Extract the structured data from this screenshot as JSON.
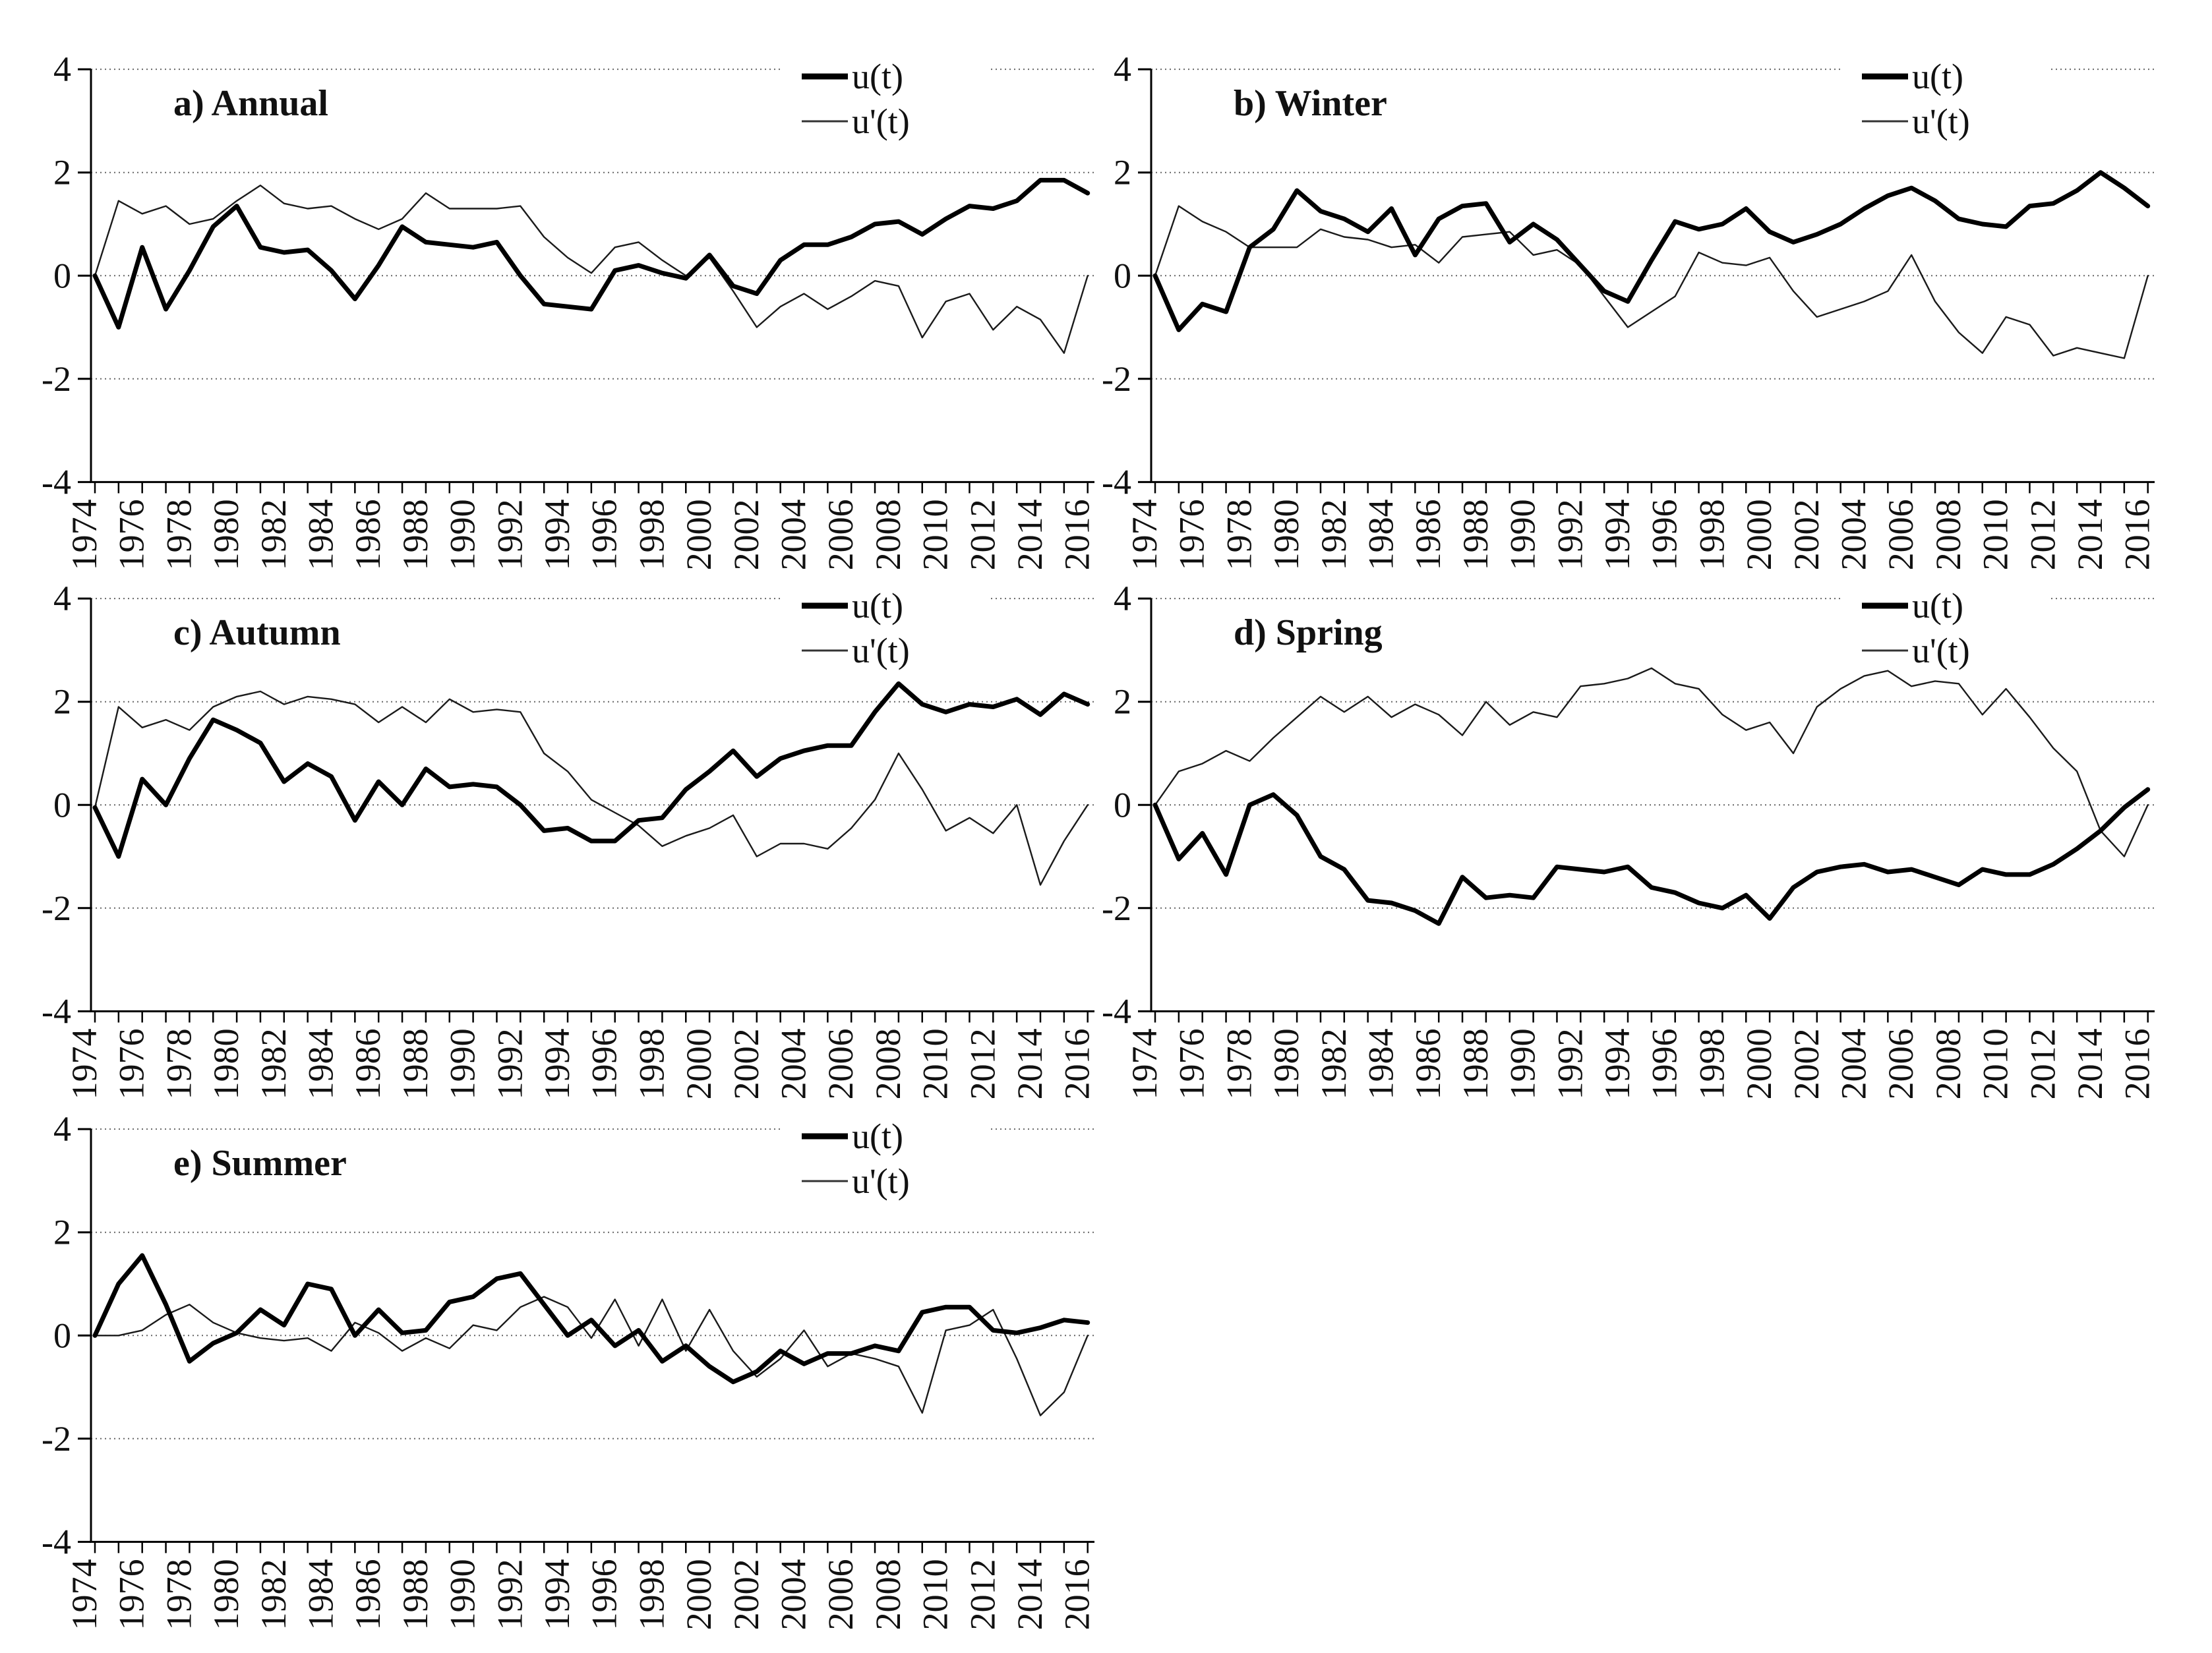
{
  "figure": {
    "background_color": "#ffffff",
    "axis_color": "#000000",
    "gridline_color": "#666666",
    "thick_series_color": "#000000",
    "thin_series_color": "#1a1a1a",
    "y_axis_ticks": [
      "4",
      "2",
      "0",
      "-2",
      "-4"
    ],
    "x_label_years": [
      1974,
      1976,
      1978,
      1980,
      1982,
      1984,
      1986,
      1988,
      1990,
      1992,
      1994,
      1996,
      1998,
      2000,
      2002,
      2004,
      2006,
      2008,
      2010,
      2012,
      2014,
      2016
    ]
  },
  "years": [
    1974,
    1975,
    1976,
    1977,
    1978,
    1979,
    1980,
    1981,
    1982,
    1983,
    1984,
    1985,
    1986,
    1987,
    1988,
    1989,
    1990,
    1991,
    1992,
    1993,
    1994,
    1995,
    1996,
    1997,
    1998,
    1999,
    2000,
    2001,
    2002,
    2003,
    2004,
    2005,
    2006,
    2007,
    2008,
    2009,
    2010,
    2011,
    2012,
    2013,
    2014,
    2015,
    2016
  ],
  "chart_data": [
    {
      "type": "line",
      "id": "annual",
      "title": "a) Annual",
      "xlabel": "",
      "ylabel": "",
      "ylim": [
        -4,
        4
      ],
      "grid": true,
      "legend_position": "top-right",
      "x_range": [
        1974,
        2016
      ],
      "series": [
        {
          "name": "u(t)",
          "style": "thick",
          "values": [
            0,
            -1.0,
            0.55,
            -0.65,
            0.1,
            0.95,
            1.35,
            0.55,
            0.45,
            0.5,
            0.1,
            -0.45,
            0.2,
            0.95,
            0.65,
            0.6,
            0.55,
            0.65,
            0.0,
            -0.55,
            -0.6,
            -0.65,
            0.1,
            0.2,
            0.05,
            -0.05,
            0.4,
            -0.2,
            -0.35,
            0.3,
            0.6,
            0.6,
            0.75,
            1.0,
            1.05,
            0.8,
            1.1,
            1.35,
            1.3,
            1.45,
            1.85,
            1.85,
            1.6
          ]
        },
        {
          "name": "u'(t)",
          "style": "thin",
          "values": [
            0,
            1.45,
            1.2,
            1.35,
            1.0,
            1.1,
            1.45,
            1.75,
            1.4,
            1.3,
            1.35,
            1.1,
            0.9,
            1.1,
            1.6,
            1.3,
            1.3,
            1.3,
            1.35,
            0.75,
            0.35,
            0.05,
            0.55,
            0.65,
            0.3,
            0.0,
            0.35,
            -0.3,
            -1.0,
            -0.6,
            -0.35,
            -0.65,
            -0.4,
            -0.1,
            -0.2,
            -1.2,
            -0.5,
            -0.35,
            -1.05,
            -0.6,
            -0.85,
            -1.5,
            0.0
          ]
        }
      ]
    },
    {
      "type": "line",
      "id": "winter",
      "title": "b) Winter",
      "xlabel": "",
      "ylabel": "",
      "ylim": [
        -4,
        4
      ],
      "grid": true,
      "legend_position": "top-right",
      "x_range": [
        1974,
        2016
      ],
      "series": [
        {
          "name": "u(t)",
          "style": "thick",
          "values": [
            0,
            -1.05,
            -0.55,
            -0.7,
            0.55,
            0.9,
            1.65,
            1.25,
            1.1,
            0.85,
            1.3,
            0.4,
            1.1,
            1.35,
            1.4,
            0.65,
            1.0,
            0.7,
            0.2,
            -0.3,
            -0.5,
            0.3,
            1.05,
            0.9,
            1.0,
            1.3,
            0.85,
            0.65,
            0.8,
            1.0,
            1.3,
            1.55,
            1.7,
            1.45,
            1.1,
            1.0,
            0.95,
            1.35,
            1.4,
            1.65,
            2.0,
            1.7,
            1.35
          ]
        },
        {
          "name": "u'(t)",
          "style": "thin",
          "values": [
            0,
            1.35,
            1.05,
            0.85,
            0.55,
            0.55,
            0.55,
            0.9,
            0.75,
            0.7,
            0.55,
            0.6,
            0.25,
            0.75,
            0.8,
            0.85,
            0.4,
            0.5,
            0.2,
            -0.4,
            -1.0,
            -0.7,
            -0.4,
            0.45,
            0.25,
            0.2,
            0.35,
            -0.3,
            -0.8,
            -0.65,
            -0.5,
            -0.3,
            0.4,
            -0.5,
            -1.1,
            -1.5,
            -0.8,
            -0.95,
            -1.55,
            -1.4,
            -1.5,
            -1.6,
            0.0
          ]
        }
      ]
    },
    {
      "type": "line",
      "id": "autumn",
      "title": "c) Autumn",
      "xlabel": "",
      "ylabel": "",
      "ylim": [
        -4,
        4
      ],
      "grid": true,
      "legend_position": "top-right",
      "x_range": [
        1974,
        2016
      ],
      "series": [
        {
          "name": "u(t)",
          "style": "thick",
          "values": [
            -0.05,
            -1.0,
            0.5,
            0.0,
            0.9,
            1.65,
            1.45,
            1.2,
            0.45,
            0.8,
            0.55,
            -0.3,
            0.45,
            0.0,
            0.7,
            0.35,
            0.4,
            0.35,
            0.0,
            -0.5,
            -0.45,
            -0.7,
            -0.7,
            -0.3,
            -0.25,
            0.3,
            0.65,
            1.05,
            0.55,
            0.9,
            1.05,
            1.15,
            1.15,
            1.8,
            2.35,
            1.95,
            1.8,
            1.95,
            1.9,
            2.05,
            1.75,
            2.15,
            1.95
          ]
        },
        {
          "name": "u'(t)",
          "style": "thin",
          "values": [
            -0.05,
            1.9,
            1.5,
            1.65,
            1.45,
            1.9,
            2.1,
            2.2,
            1.95,
            2.1,
            2.05,
            1.95,
            1.6,
            1.9,
            1.6,
            2.05,
            1.8,
            1.85,
            1.8,
            1.0,
            0.65,
            0.1,
            -0.15,
            -0.4,
            -0.8,
            -0.6,
            -0.45,
            -0.2,
            -1.0,
            -0.75,
            -0.75,
            -0.85,
            -0.45,
            0.1,
            1.0,
            0.3,
            -0.5,
            -0.25,
            -0.55,
            0.0,
            -1.55,
            -0.7,
            0.0
          ]
        }
      ]
    },
    {
      "type": "line",
      "id": "spring",
      "title": "d) Spring",
      "xlabel": "",
      "ylabel": "",
      "ylim": [
        -4,
        4
      ],
      "grid": true,
      "legend_position": "top-right",
      "x_range": [
        1974,
        2016
      ],
      "series": [
        {
          "name": "u(t)",
          "style": "thick",
          "values": [
            0,
            -1.05,
            -0.55,
            -1.35,
            0.0,
            0.2,
            -0.2,
            -1.0,
            -1.25,
            -1.85,
            -1.9,
            -2.05,
            -2.3,
            -1.4,
            -1.8,
            -1.75,
            -1.8,
            -1.2,
            -1.25,
            -1.3,
            -1.2,
            -1.6,
            -1.7,
            -1.9,
            -2.0,
            -1.75,
            -2.2,
            -1.6,
            -1.3,
            -1.2,
            -1.15,
            -1.3,
            -1.25,
            -1.4,
            -1.55,
            -1.25,
            -1.35,
            -1.35,
            -1.15,
            -0.85,
            -0.5,
            -0.05,
            0.3
          ]
        },
        {
          "name": "u'(t)",
          "style": "thin",
          "values": [
            0,
            0.65,
            0.8,
            1.05,
            0.85,
            1.3,
            1.7,
            2.1,
            1.8,
            2.1,
            1.7,
            1.95,
            1.75,
            1.35,
            2.0,
            1.55,
            1.8,
            1.7,
            2.3,
            2.35,
            2.45,
            2.65,
            2.35,
            2.25,
            1.75,
            1.45,
            1.6,
            1.0,
            1.9,
            2.25,
            2.5,
            2.6,
            2.3,
            2.4,
            2.35,
            1.75,
            2.25,
            1.7,
            1.1,
            0.65,
            -0.5,
            -1.0,
            0.0
          ]
        }
      ]
    },
    {
      "type": "line",
      "id": "summer",
      "title": "e) Summer",
      "xlabel": "",
      "ylabel": "",
      "ylim": [
        -4,
        4
      ],
      "grid": true,
      "legend_position": "top-right",
      "x_range": [
        1974,
        2016
      ],
      "series": [
        {
          "name": "u(t)",
          "style": "thick",
          "values": [
            0,
            1.0,
            1.55,
            0.6,
            -0.5,
            -0.15,
            0.05,
            0.5,
            0.2,
            1.0,
            0.9,
            0.0,
            0.5,
            0.05,
            0.1,
            0.65,
            0.75,
            1.1,
            1.2,
            0.6,
            0.0,
            0.3,
            -0.2,
            0.1,
            -0.5,
            -0.2,
            -0.6,
            -0.9,
            -0.7,
            -0.3,
            -0.55,
            -0.35,
            -0.35,
            -0.2,
            -0.3,
            0.45,
            0.55,
            0.55,
            0.1,
            0.05,
            0.15,
            0.3,
            0.25
          ]
        },
        {
          "name": "u'(t)",
          "style": "thin",
          "values": [
            0,
            0.0,
            0.1,
            0.4,
            0.6,
            0.25,
            0.05,
            -0.05,
            -0.1,
            -0.05,
            -0.3,
            0.25,
            0.05,
            -0.3,
            -0.05,
            -0.25,
            0.2,
            0.1,
            0.55,
            0.75,
            0.55,
            -0.05,
            0.7,
            -0.2,
            0.7,
            -0.3,
            0.5,
            -0.3,
            -0.8,
            -0.45,
            0.1,
            -0.6,
            -0.35,
            -0.45,
            -0.6,
            -1.5,
            0.1,
            0.2,
            0.5,
            -0.45,
            -1.55,
            -1.1,
            0.0
          ]
        }
      ]
    }
  ]
}
